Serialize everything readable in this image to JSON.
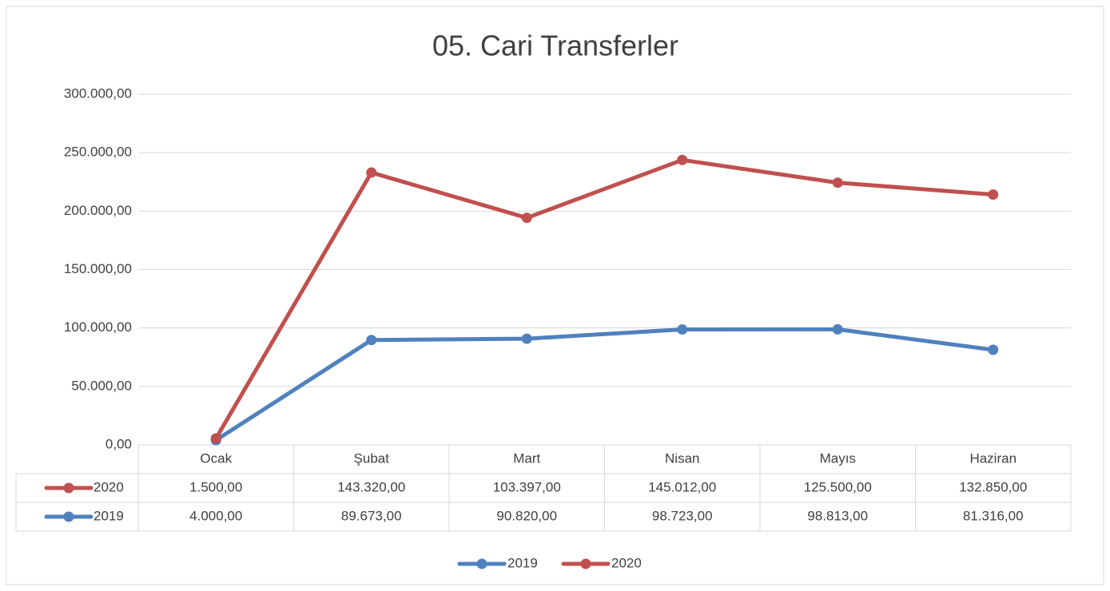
{
  "chart_data": {
    "type": "line",
    "stacked": true,
    "title": "05. Cari Transferler",
    "categories": [
      "Ocak",
      "Şubat",
      "Mart",
      "Nisan",
      "Mayıs",
      "Haziran"
    ],
    "series": [
      {
        "name": "2019",
        "color": "#4f81bd",
        "values": [
          4000,
          89673,
          90820,
          98723,
          98813,
          81316
        ],
        "value_labels": [
          "4.000,00",
          "89.673,00",
          "90.820,00",
          "98.723,00",
          "98.813,00",
          "81.316,00"
        ]
      },
      {
        "name": "2020",
        "color": "#c0504d",
        "values": [
          1500,
          143320,
          103397,
          145012,
          125500,
          132850
        ],
        "value_labels": [
          "1.500,00",
          "143.320,00",
          "103.397,00",
          "145.012,00",
          "125.500,00",
          "132.850,00"
        ]
      }
    ],
    "ylim": [
      0,
      300000
    ],
    "yticks": [
      {
        "value": 0,
        "label": "0,00"
      },
      {
        "value": 50000,
        "label": "50.000,00"
      },
      {
        "value": 100000,
        "label": "100.000,00"
      },
      {
        "value": 150000,
        "label": "150.000,00"
      },
      {
        "value": 200000,
        "label": "200.000,00"
      },
      {
        "value": 250000,
        "label": "250.000,00"
      },
      {
        "value": 300000,
        "label": "300.000,00"
      }
    ],
    "grid": true,
    "legend": "bottom",
    "data_table": true
  }
}
